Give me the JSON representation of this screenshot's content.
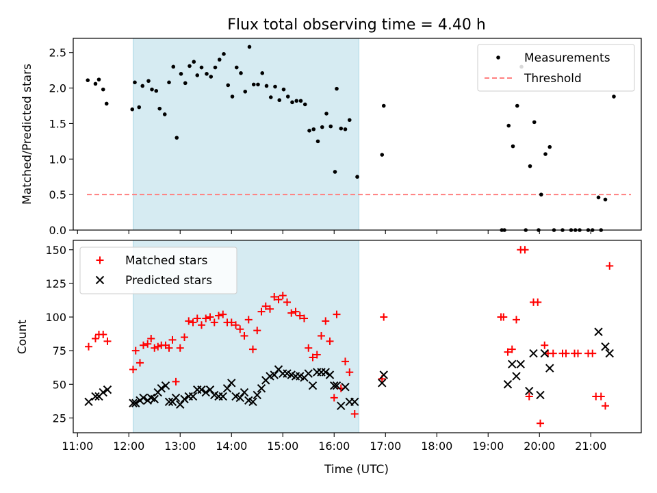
{
  "title": "Flux total observing time = 4.40 h",
  "colors": {
    "shade": "#add8e6",
    "measurement": "#000000",
    "threshold": "#ff7f7f",
    "matched": "#ff0000",
    "predicted": "#000000"
  },
  "chart_data": [
    {
      "type": "scatter",
      "ylabel": "Matched/Predicted stars",
      "ylim": [
        0,
        2.7
      ],
      "yticks": [
        0.0,
        0.5,
        1.0,
        1.5,
        2.0,
        2.5
      ],
      "ytick_labels": [
        "0.0",
        "0.5",
        "1.0",
        "1.5",
        "2.0",
        "2.5"
      ],
      "xlim": [
        "10:55",
        "21:59"
      ],
      "shaded_interval": [
        "12:05",
        "16:29"
      ],
      "legend": {
        "placement": "upper right",
        "entries": [
          "Measurements",
          "Threshold"
        ]
      },
      "threshold": {
        "name": "Threshold",
        "value": 0.5,
        "x_range": [
          "11:11",
          "21:47"
        ],
        "style": "dashed"
      },
      "series": [
        {
          "name": "Measurements",
          "marker": "dot",
          "points": [
            [
              "11:12",
              2.11
            ],
            [
              "11:21",
              2.06
            ],
            [
              "11:25",
              2.12
            ],
            [
              "11:30",
              1.98
            ],
            [
              "11:34",
              1.78
            ],
            [
              "12:04",
              1.7
            ],
            [
              "12:07",
              2.08
            ],
            [
              "12:12",
              1.73
            ],
            [
              "12:16",
              2.03
            ],
            [
              "12:23",
              2.1
            ],
            [
              "12:27",
              1.98
            ],
            [
              "12:32",
              1.96
            ],
            [
              "12:36",
              1.71
            ],
            [
              "12:42",
              1.63
            ],
            [
              "12:47",
              2.08
            ],
            [
              "12:52",
              2.3
            ],
            [
              "12:56",
              1.3
            ],
            [
              "13:01",
              2.2
            ],
            [
              "13:06",
              2.07
            ],
            [
              "13:11",
              2.31
            ],
            [
              "13:16",
              2.37
            ],
            [
              "13:20",
              2.18
            ],
            [
              "13:25",
              2.29
            ],
            [
              "13:31",
              2.2
            ],
            [
              "13:36",
              2.16
            ],
            [
              "13:41",
              2.29
            ],
            [
              "13:46",
              2.4
            ],
            [
              "13:51",
              2.48
            ],
            [
              "13:56",
              2.04
            ],
            [
              "14:01",
              1.88
            ],
            [
              "14:06",
              2.29
            ],
            [
              "14:11",
              2.21
            ],
            [
              "14:16",
              1.95
            ],
            [
              "14:21",
              2.58
            ],
            [
              "14:26",
              2.05
            ],
            [
              "14:31",
              2.05
            ],
            [
              "14:36",
              2.21
            ],
            [
              "14:41",
              2.03
            ],
            [
              "14:46",
              1.87
            ],
            [
              "14:51",
              2.02
            ],
            [
              "14:56",
              1.83
            ],
            [
              "15:01",
              1.98
            ],
            [
              "15:06",
              1.88
            ],
            [
              "15:11",
              1.8
            ],
            [
              "15:16",
              1.82
            ],
            [
              "15:21",
              1.82
            ],
            [
              "15:26",
              1.77
            ],
            [
              "15:31",
              1.4
            ],
            [
              "15:36",
              1.42
            ],
            [
              "15:41",
              1.25
            ],
            [
              "15:46",
              1.45
            ],
            [
              "15:51",
              1.64
            ],
            [
              "15:56",
              1.46
            ],
            [
              "16:01",
              0.82
            ],
            [
              "16:03",
              1.99
            ],
            [
              "16:08",
              1.43
            ],
            [
              "16:13",
              1.42
            ],
            [
              "16:18",
              1.55
            ],
            [
              "16:27",
              0.75
            ],
            [
              "16:56",
              1.06
            ],
            [
              "16:58",
              1.75
            ],
            [
              "19:16",
              0.0
            ],
            [
              "19:19",
              0.0
            ],
            [
              "19:24",
              1.47
            ],
            [
              "19:29",
              1.18
            ],
            [
              "19:34",
              1.75
            ],
            [
              "19:39",
              2.3
            ],
            [
              "19:44",
              0.0
            ],
            [
              "19:49",
              0.9
            ],
            [
              "19:54",
              1.52
            ],
            [
              "19:59",
              0.0
            ],
            [
              "20:02",
              0.5
            ],
            [
              "20:07",
              1.07
            ],
            [
              "20:12",
              1.17
            ],
            [
              "20:17",
              0.0
            ],
            [
              "20:27",
              0.0
            ],
            [
              "20:37",
              0.0
            ],
            [
              "20:42",
              0.0
            ],
            [
              "20:47",
              0.0
            ],
            [
              "20:57",
              0.0
            ],
            [
              "21:02",
              0.0
            ],
            [
              "21:09",
              0.46
            ],
            [
              "21:12",
              0.0
            ],
            [
              "21:17",
              0.43
            ],
            [
              "21:27",
              1.88
            ]
          ]
        }
      ]
    },
    {
      "type": "scatter",
      "xlabel": "Time (UTC)",
      "ylabel": "Count",
      "ylim": [
        14,
        157
      ],
      "yticks": [
        25,
        50,
        75,
        100,
        125,
        150
      ],
      "xlim": [
        "10:55",
        "21:59"
      ],
      "xticks": [
        "11:00",
        "12:00",
        "13:00",
        "14:00",
        "15:00",
        "16:00",
        "17:00",
        "18:00",
        "19:00",
        "20:00",
        "21:00"
      ],
      "shaded_interval": [
        "12:05",
        "16:29"
      ],
      "legend": {
        "placement": "upper left",
        "entries": [
          "Matched stars",
          "Predicted stars"
        ]
      },
      "series": [
        {
          "name": "Matched stars",
          "marker": "plus",
          "points": [
            [
              "11:13",
              78
            ],
            [
              "11:21",
              84
            ],
            [
              "11:25",
              87
            ],
            [
              "11:30",
              87
            ],
            [
              "11:35",
              82
            ],
            [
              "12:05",
              61
            ],
            [
              "12:08",
              75
            ],
            [
              "12:13",
              66
            ],
            [
              "12:17",
              79
            ],
            [
              "12:22",
              80
            ],
            [
              "12:26",
              84
            ],
            [
              "12:30",
              77
            ],
            [
              "12:34",
              78
            ],
            [
              "12:38",
              79
            ],
            [
              "12:43",
              79
            ],
            [
              "12:47",
              77
            ],
            [
              "12:51",
              83
            ],
            [
              "12:55",
              52
            ],
            [
              "13:00",
              77
            ],
            [
              "13:05",
              85
            ],
            [
              "13:10",
              97
            ],
            [
              "13:15",
              96
            ],
            [
              "13:20",
              99
            ],
            [
              "13:25",
              94
            ],
            [
              "13:30",
              99
            ],
            [
              "13:35",
              100
            ],
            [
              "13:40",
              96
            ],
            [
              "13:45",
              101
            ],
            [
              "13:50",
              102
            ],
            [
              "13:55",
              96
            ],
            [
              "14:00",
              96
            ],
            [
              "14:05",
              94
            ],
            [
              "14:10",
              91
            ],
            [
              "14:15",
              86
            ],
            [
              "14:20",
              98
            ],
            [
              "14:25",
              76
            ],
            [
              "14:30",
              90
            ],
            [
              "14:35",
              104
            ],
            [
              "14:40",
              108
            ],
            [
              "14:45",
              106
            ],
            [
              "14:50",
              115
            ],
            [
              "14:55",
              113
            ],
            [
              "15:00",
              116
            ],
            [
              "15:05",
              111
            ],
            [
              "15:10",
              103
            ],
            [
              "15:15",
              104
            ],
            [
              "15:20",
              101
            ],
            [
              "15:25",
              99
            ],
            [
              "15:30",
              77
            ],
            [
              "15:35",
              70
            ],
            [
              "15:40",
              72
            ],
            [
              "15:45",
              86
            ],
            [
              "15:50",
              97
            ],
            [
              "15:55",
              82
            ],
            [
              "16:00",
              40
            ],
            [
              "16:03",
              102
            ],
            [
              "16:08",
              47
            ],
            [
              "16:13",
              67
            ],
            [
              "16:18",
              59
            ],
            [
              "16:24",
              28
            ],
            [
              "16:56",
              54
            ],
            [
              "16:58",
              100
            ],
            [
              "19:15",
              100
            ],
            [
              "19:18",
              100
            ],
            [
              "19:23",
              74
            ],
            [
              "19:28",
              76
            ],
            [
              "19:33",
              98
            ],
            [
              "19:38",
              150
            ],
            [
              "19:43",
              150
            ],
            [
              "19:48",
              41
            ],
            [
              "19:53",
              111
            ],
            [
              "19:58",
              111
            ],
            [
              "20:01",
              21
            ],
            [
              "20:06",
              79
            ],
            [
              "20:10",
              73
            ],
            [
              "20:16",
              73
            ],
            [
              "20:27",
              73
            ],
            [
              "20:31",
              73
            ],
            [
              "20:41",
              73
            ],
            [
              "20:45",
              73
            ],
            [
              "20:57",
              73
            ],
            [
              "21:02",
              73
            ],
            [
              "21:06",
              41
            ],
            [
              "21:12",
              41
            ],
            [
              "21:17",
              34
            ],
            [
              "21:22",
              138
            ]
          ]
        },
        {
          "name": "Predicted stars",
          "marker": "x",
          "points": [
            [
              "11:13",
              37
            ],
            [
              "11:21",
              41
            ],
            [
              "11:25",
              41
            ],
            [
              "11:30",
              44
            ],
            [
              "11:35",
              46
            ],
            [
              "12:05",
              36
            ],
            [
              "12:08",
              36
            ],
            [
              "12:13",
              38
            ],
            [
              "12:17",
              40
            ],
            [
              "12:22",
              38
            ],
            [
              "12:26",
              40
            ],
            [
              "12:30",
              39
            ],
            [
              "12:34",
              44
            ],
            [
              "12:38",
              47
            ],
            [
              "12:43",
              49
            ],
            [
              "12:47",
              37
            ],
            [
              "12:51",
              37
            ],
            [
              "12:55",
              40
            ],
            [
              "13:00",
              35
            ],
            [
              "13:05",
              39
            ],
            [
              "13:10",
              41
            ],
            [
              "13:15",
              41
            ],
            [
              "13:20",
              46
            ],
            [
              "13:25",
              46
            ],
            [
              "13:30",
              44
            ],
            [
              "13:35",
              46
            ],
            [
              "13:40",
              42
            ],
            [
              "13:45",
              41
            ],
            [
              "13:50",
              41
            ],
            [
              "13:55",
              47
            ],
            [
              "14:00",
              51
            ],
            [
              "14:05",
              41
            ],
            [
              "14:10",
              40
            ],
            [
              "14:15",
              44
            ],
            [
              "14:20",
              38
            ],
            [
              "14:25",
              37
            ],
            [
              "14:30",
              42
            ],
            [
              "14:35",
              47
            ],
            [
              "14:40",
              53
            ],
            [
              "14:45",
              56
            ],
            [
              "14:50",
              57
            ],
            [
              "14:55",
              61
            ],
            [
              "15:00",
              58
            ],
            [
              "15:05",
              58
            ],
            [
              "15:10",
              57
            ],
            [
              "15:15",
              56
            ],
            [
              "15:20",
              56
            ],
            [
              "15:25",
              55
            ],
            [
              "15:30",
              58
            ],
            [
              "15:35",
              49
            ],
            [
              "15:40",
              59
            ],
            [
              "15:45",
              59
            ],
            [
              "15:50",
              59
            ],
            [
              "15:55",
              57
            ],
            [
              "16:00",
              49
            ],
            [
              "16:03",
              49
            ],
            [
              "16:08",
              34
            ],
            [
              "16:13",
              48
            ],
            [
              "16:18",
              37
            ],
            [
              "16:24",
              37
            ],
            [
              "16:56",
              51
            ],
            [
              "16:58",
              57
            ],
            [
              "19:23",
              50
            ],
            [
              "19:28",
              65
            ],
            [
              "19:33",
              56
            ],
            [
              "19:38",
              65
            ],
            [
              "19:48",
              45
            ],
            [
              "19:53",
              73
            ],
            [
              "20:01",
              42
            ],
            [
              "20:06",
              73
            ],
            [
              "20:12",
              62
            ],
            [
              "21:09",
              89
            ],
            [
              "21:17",
              78
            ],
            [
              "21:22",
              73
            ]
          ]
        }
      ]
    }
  ]
}
